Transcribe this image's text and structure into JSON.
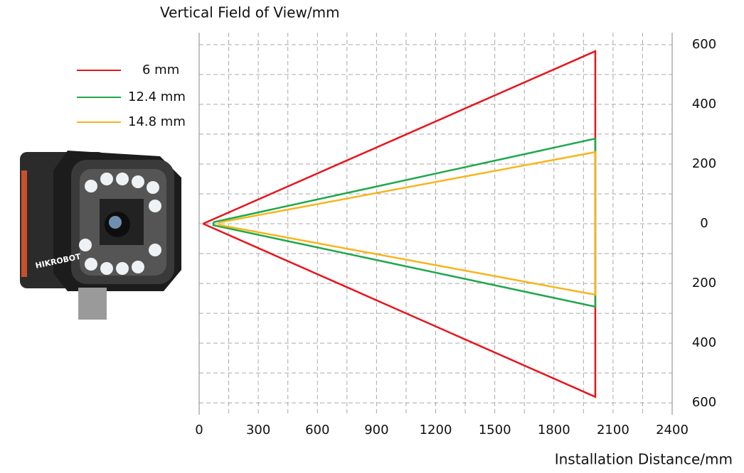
{
  "chart_data": {
    "type": "line",
    "title": "Vertical Field of View/mm",
    "x_label": "Installation Distance/mm",
    "image_label": "HIKROBOT",
    "series": [
      {
        "name": "6 mm",
        "color": "#e8141b",
        "x": [
          20,
          2010,
          2010,
          20
        ],
        "values": [
          0,
          578,
          -580,
          0
        ]
      },
      {
        "name": "12.4 mm",
        "color": "#1fa84a",
        "x": [
          72,
          2010,
          2010,
          72,
          72
        ],
        "values": [
          5,
          285,
          -278,
          -5,
          5
        ]
      },
      {
        "name": "14.8 mm",
        "color": "#f7b51c",
        "x": [
          100,
          2010,
          2010,
          100,
          100
        ],
        "values": [
          4,
          240,
          -238,
          -4,
          4
        ]
      }
    ],
    "xlim": [
      0,
      2400
    ],
    "xticks": [
      0,
      300,
      600,
      900,
      1200,
      1500,
      1800,
      2100,
      2400
    ],
    "xminorticks": [
      150,
      450,
      750,
      1050,
      1350,
      1650,
      1950,
      2250
    ],
    "ylim": [
      -640,
      640
    ],
    "yticks": [
      {
        "value": -600,
        "label": "600"
      },
      {
        "value": -400,
        "label": "400"
      },
      {
        "value": -200,
        "label": "200"
      },
      0,
      200,
      400,
      600
    ],
    "yminorticks": [
      -500,
      -300,
      -100,
      100,
      300,
      500
    ],
    "grid": true,
    "legend": "upper left"
  }
}
